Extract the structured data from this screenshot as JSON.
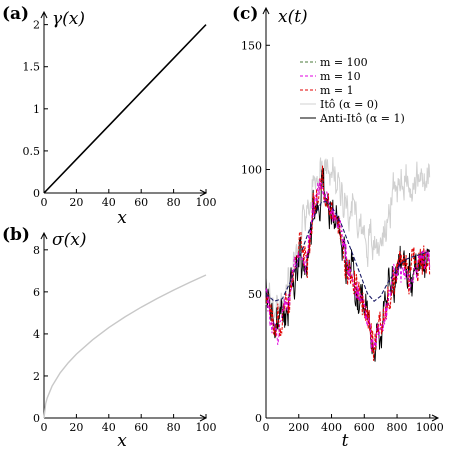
{
  "chart_data": [
    {
      "type": "line",
      "panel_label": "(a)",
      "title": "",
      "ylabel": "γ(x)",
      "xlabel": "x",
      "xlim": [
        0,
        100
      ],
      "ylim": [
        0,
        2.15
      ],
      "xticks": [
        0,
        20,
        40,
        60,
        80,
        100
      ],
      "yticks": [
        0,
        0.5,
        1,
        1.5,
        2
      ],
      "ytick_labels": [
        "0",
        "0.5",
        "1",
        "1.5",
        "2"
      ],
      "series": [
        {
          "x": [
            0,
            20,
            40,
            60,
            80,
            100
          ],
          "values": [
            0,
            0.4,
            0.8,
            1.2,
            1.6,
            2.0
          ],
          "color": "#000000"
        }
      ]
    },
    {
      "type": "line",
      "panel_label": "(b)",
      "title": "",
      "ylabel": "σ(x)",
      "xlabel": "x",
      "xlim": [
        0,
        100
      ],
      "ylim": [
        0,
        8.8
      ],
      "xticks": [
        0,
        20,
        40,
        60,
        80,
        100
      ],
      "yticks": [
        0,
        2,
        4,
        6,
        8
      ],
      "ytick_labels": [
        "0",
        "2",
        "4",
        "6",
        "8"
      ],
      "series": [
        {
          "x": [
            0,
            1,
            2,
            5,
            10,
            15,
            20,
            30,
            40,
            50,
            60,
            70,
            80,
            90,
            100
          ],
          "values": [
            0,
            0.68,
            0.96,
            1.52,
            2.15,
            2.63,
            3.04,
            3.72,
            4.3,
            4.81,
            5.27,
            5.69,
            6.08,
            6.45,
            6.8
          ],
          "color": "#c8c8c8"
        }
      ]
    },
    {
      "type": "line",
      "panel_label": "(c)",
      "title": "",
      "ylabel": "x(t)",
      "xlabel": "t",
      "xlim": [
        0,
        1050
      ],
      "ylim": [
        0,
        165
      ],
      "xticks": [
        0,
        200,
        400,
        600,
        800,
        1000
      ],
      "yticks": [
        0,
        50,
        100,
        150
      ],
      "ytick_labels": [
        "0",
        "50",
        "100",
        "150"
      ],
      "legend": {
        "position": "top-right",
        "entries": [
          {
            "label": "m = 100",
            "color": "#4a7a3a",
            "style": "dashed"
          },
          {
            "label": "m = 10",
            "color": "#e000e0",
            "style": "dashed"
          },
          {
            "label": "m = 1",
            "color": "#e00000",
            "style": "dashed"
          },
          {
            "label": "Itô (α = 0)",
            "color": "#d0d0d0",
            "style": "solid"
          },
          {
            "label": "Anti-Itô (α = 1)",
            "color": "#000000",
            "style": "solid"
          }
        ]
      },
      "smooth_curve": {
        "t": [
          0,
          50,
          100,
          150,
          200,
          250,
          300,
          340,
          380,
          420,
          460,
          500,
          540,
          580,
          620,
          660,
          700,
          740,
          780,
          820,
          860,
          900,
          950,
          1000
        ],
        "values": [
          50,
          47,
          48,
          55,
          64,
          73,
          82,
          87,
          87,
          83,
          78,
          71,
          64,
          57,
          50,
          47,
          49,
          54,
          58,
          62,
          64,
          65,
          66,
          67
        ],
        "color": "#1a1a66"
      },
      "ito_curve": {
        "t": [
          0,
          50,
          100,
          150,
          200,
          250,
          300,
          340,
          380,
          420,
          460,
          500,
          540,
          580,
          620,
          660,
          700,
          740,
          780,
          820,
          860,
          900,
          950,
          1000
        ],
        "values": [
          50,
          45,
          48,
          56,
          68,
          82,
          97,
          104,
          100,
          96,
          92,
          88,
          84,
          78,
          72,
          68,
          72,
          80,
          90,
          98,
          96,
          94,
          96,
          98
        ]
      },
      "anti_ito_curve": {
        "t": [
          0,
          50,
          100,
          150,
          200,
          250,
          300,
          340,
          380,
          420,
          460,
          500,
          540,
          580,
          620,
          660,
          700,
          740,
          780,
          820,
          860,
          900,
          950,
          1000
        ],
        "values": [
          50,
          36,
          40,
          50,
          68,
          62,
          88,
          92,
          85,
          80,
          72,
          62,
          55,
          48,
          40,
          28,
          35,
          45,
          58,
          62,
          56,
          60,
          64,
          66
        ]
      }
    }
  ]
}
